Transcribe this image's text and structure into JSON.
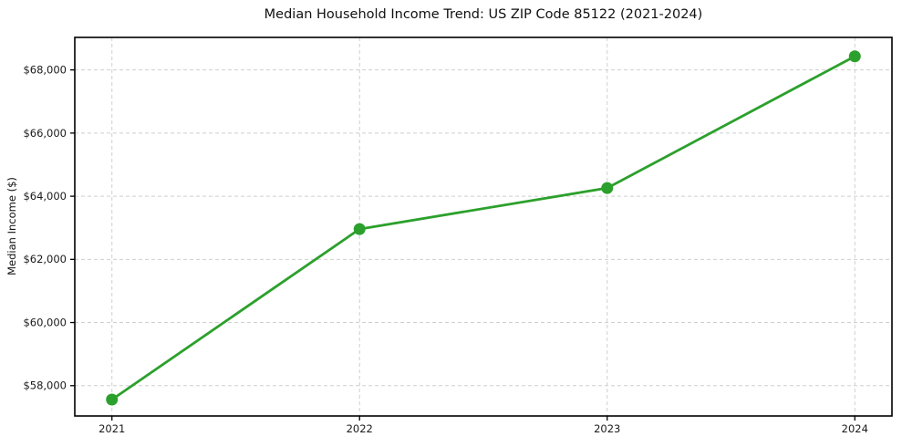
{
  "chart_data": {
    "type": "line",
    "title": "Median Household Income Trend: US ZIP Code 85122 (2021-2024)",
    "xlabel": "",
    "ylabel": "Median Income ($)",
    "categories": [
      "2021",
      "2022",
      "2023",
      "2024"
    ],
    "x": [
      2021,
      2022,
      2023,
      2024
    ],
    "series": [
      {
        "name": "Median Household Income",
        "values": [
          57560,
          62960,
          64260,
          68430
        ]
      }
    ],
    "yticks": [
      58000,
      60000,
      62000,
      64000,
      66000,
      68000
    ],
    "ytick_labels": [
      "$58,000",
      "$60,000",
      "$62,000",
      "$64,000",
      "$66,000",
      "$68,000"
    ],
    "xlim": [
      2020.85,
      2024.15
    ],
    "ylim": [
      57040,
      69030
    ],
    "grid": true,
    "legend_position": "none",
    "colors": {
      "line": "#2ca02c",
      "marker": "#2ca02c",
      "grid": "#cfcfcf",
      "spine": "#000000",
      "tick_text": "#1a1a1a",
      "background": "#ffffff"
    }
  }
}
